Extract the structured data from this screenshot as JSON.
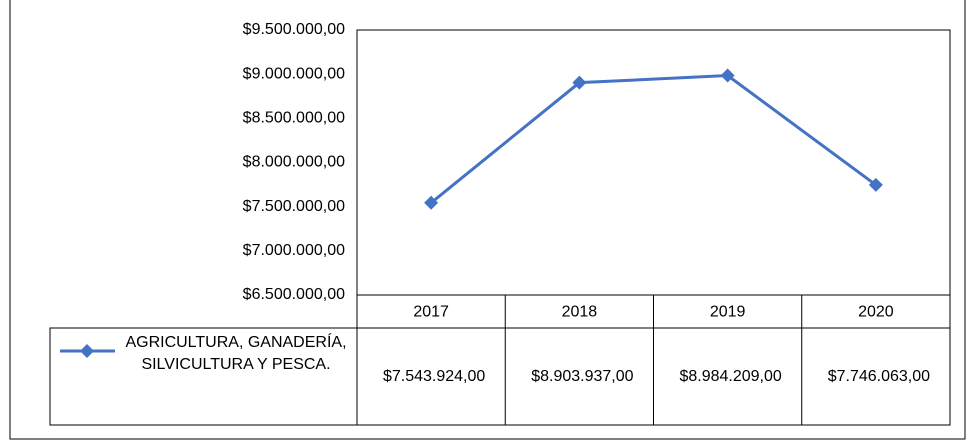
{
  "chart_data": {
    "type": "line",
    "categories": [
      "2017",
      "2018",
      "2019",
      "2020"
    ],
    "series": [
      {
        "name": "AGRICULTURA, GANADERÍA, SILVICULTURA Y PESCA.",
        "color": "#4472c4",
        "values": [
          7543924,
          8903937,
          8984209,
          7746063
        ],
        "value_labels": [
          "$7.543.924,00",
          "$8.903.937,00",
          "$8.984.209,00",
          "$7.746.063,00"
        ]
      }
    ],
    "ylim": [
      6500000,
      9500000
    ],
    "yticks": [
      {
        "value": 6500000,
        "label": "$6.500.000,00"
      },
      {
        "value": 7000000,
        "label": "$7.000.000,00"
      },
      {
        "value": 7500000,
        "label": "$7.500.000,00"
      },
      {
        "value": 8000000,
        "label": "$8.000.000,00"
      },
      {
        "value": 8500000,
        "label": "$8.500.000,00"
      },
      {
        "value": 9000000,
        "label": "$9.000.000,00"
      },
      {
        "value": 9500000,
        "label": "$9.500.000,00"
      }
    ],
    "grid": false,
    "data_table": true
  }
}
